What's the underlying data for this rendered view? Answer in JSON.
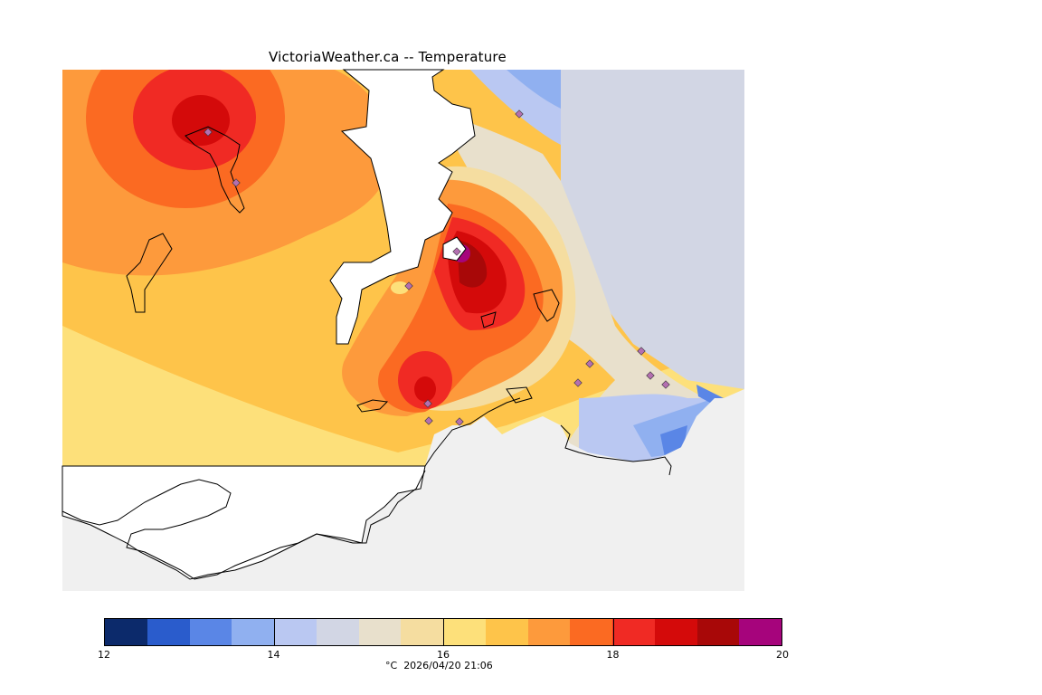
{
  "title": "VictoriaWeather.ca -- Temperature",
  "colors": {
    "land_background": "#f0f0f0",
    "water": "#ffffff",
    "station_marker": "#b36fb0",
    "coast": "#000000"
  },
  "legend": {
    "unit": "°C",
    "timestamp": "2026/04/20 21:06",
    "tick_labels": [
      "12",
      "14",
      "16",
      "18",
      "20"
    ],
    "bands": [
      {
        "from": 12.0,
        "to": 12.5,
        "color": "#0c2a6b"
      },
      {
        "from": 12.5,
        "to": 13.0,
        "color": "#2a5ccc"
      },
      {
        "from": 13.0,
        "to": 13.5,
        "color": "#5a86e6"
      },
      {
        "from": 13.5,
        "to": 14.0,
        "color": "#90b0f0"
      },
      {
        "from": 14.0,
        "to": 14.5,
        "color": "#bac8f2"
      },
      {
        "from": 14.5,
        "to": 15.0,
        "color": "#d2d6e4"
      },
      {
        "from": 15.0,
        "to": 15.5,
        "color": "#e8e0cc"
      },
      {
        "from": 15.5,
        "to": 16.0,
        "color": "#f5dda0"
      },
      {
        "from": 16.0,
        "to": 16.5,
        "color": "#fde07a"
      },
      {
        "from": 16.5,
        "to": 17.0,
        "color": "#fec44a"
      },
      {
        "from": 17.0,
        "to": 17.5,
        "color": "#fd9a3c"
      },
      {
        "from": 17.5,
        "to": 18.0,
        "color": "#fb6a22"
      },
      {
        "from": 18.0,
        "to": 18.5,
        "color": "#f02a24"
      },
      {
        "from": 18.5,
        "to": 19.0,
        "color": "#d40a0a"
      },
      {
        "from": 19.0,
        "to": 19.5,
        "color": "#a80808"
      },
      {
        "from": 19.5,
        "to": 20.0,
        "color": "#a6047c"
      }
    ]
  }
}
